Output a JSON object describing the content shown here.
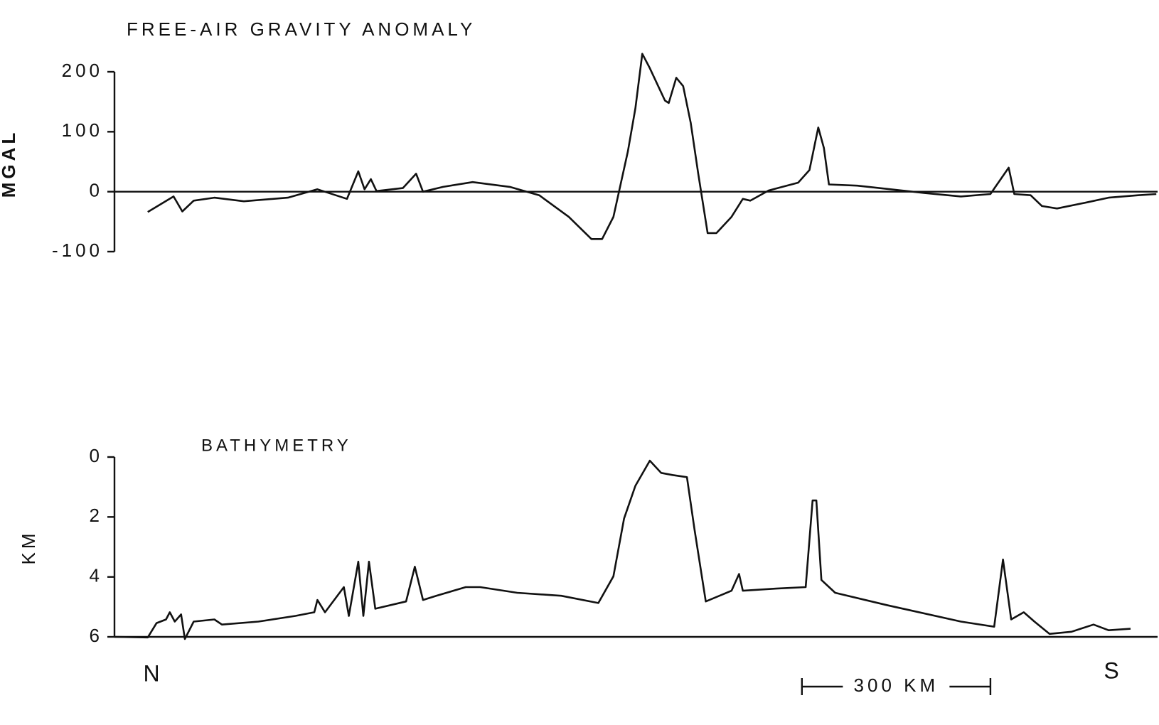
{
  "chart_data": [
    {
      "type": "line",
      "title": "FREE-AIR GRAVITY ANOMALY",
      "y_label": "MGAL",
      "ylim": [
        -100,
        200
      ],
      "yticks": [
        -100,
        0,
        100,
        200
      ],
      "xlim": [
        0,
        1660
      ],
      "series": [
        {
          "color": "#111111",
          "x": [
            53,
            94,
            108,
            126,
            159,
            206,
            276,
            323,
            370,
            388,
            398,
            408,
            417,
            459,
            480,
            491,
            523,
            570,
            629,
            676,
            723,
            759,
            776,
            794,
            817,
            829,
            840,
            852,
            876,
            882,
            894,
            905,
            917,
            929,
            944,
            958,
            982,
            1000,
            1012,
            1041,
            1088,
            1106,
            1120,
            1129,
            1137,
            1182,
            1288,
            1347,
            1394,
            1423,
            1432,
            1458,
            1476,
            1500,
            1547,
            1582,
            1629,
            1658
          ],
          "values": [
            -34,
            -8,
            -33,
            -15,
            -10,
            -16,
            -10,
            4,
            -12,
            34,
            4,
            21,
            1,
            6,
            30,
            0,
            8,
            16,
            8,
            -6,
            -42,
            -79,
            -79,
            -42,
            67,
            139,
            230,
            206,
            152,
            148,
            190,
            176,
            115,
            30,
            -69,
            -69,
            -42,
            -12,
            -15,
            2,
            15,
            36,
            107,
            73,
            12,
            10,
            -2,
            -8,
            -4,
            40,
            -4,
            -6,
            -24,
            -28,
            -18,
            -10,
            -6,
            -4
          ]
        }
      ]
    },
    {
      "type": "line",
      "title": "BATHYMETRY",
      "y_label": "KM",
      "ylim": [
        6,
        0
      ],
      "yticks": [
        0,
        2,
        4,
        6
      ],
      "xlim": [
        0,
        1660
      ],
      "x_start_label": "N",
      "x_end_label": "S",
      "scale_bar": {
        "value": 300,
        "label": "300 KM"
      },
      "series": [
        {
          "color": "#111111",
          "x": [
            0,
            53,
            67,
            82,
            88,
            96,
            106,
            112,
            126,
            159,
            171,
            229,
            288,
            318,
            323,
            335,
            365,
            373,
            388,
            396,
            405,
            415,
            464,
            478,
            491,
            512,
            559,
            582,
            641,
            711,
            770,
            794,
            811,
            829,
            852,
            870,
            888,
            911,
            923,
            941,
            982,
            994,
            1000,
            1053,
            1100,
            1111,
            1117,
            1125,
            1147,
            1229,
            1347,
            1400,
            1414,
            1427,
            1447,
            1464,
            1488,
            1523,
            1558,
            1582,
            1617
          ],
          "values": [
            6.0,
            6.02,
            5.54,
            5.42,
            5.18,
            5.49,
            5.25,
            6.07,
            5.49,
            5.42,
            5.59,
            5.49,
            5.3,
            5.18,
            4.77,
            5.18,
            4.34,
            5.3,
            3.49,
            5.3,
            3.49,
            5.06,
            4.82,
            3.66,
            4.77,
            4.63,
            4.34,
            4.34,
            4.53,
            4.63,
            4.87,
            3.98,
            2.05,
            0.96,
            0.12,
            0.53,
            0.6,
            0.67,
            2.41,
            4.82,
            4.46,
            3.9,
            4.46,
            4.39,
            4.34,
            1.45,
            1.45,
            4.1,
            4.53,
            4.94,
            5.49,
            5.66,
            3.42,
            5.42,
            5.18,
            5.49,
            5.9,
            5.83,
            5.59,
            5.78,
            5.73
          ]
        }
      ]
    }
  ]
}
